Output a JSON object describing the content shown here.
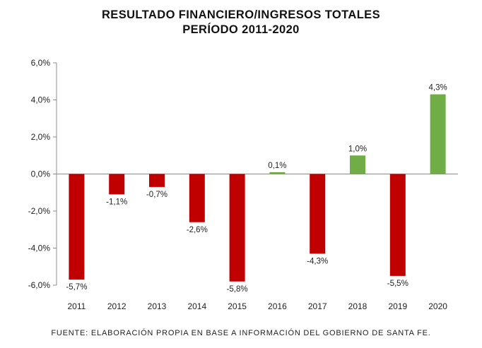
{
  "title_line1": "RESULTADO FINANCIERO/INGRESOS TOTALES",
  "title_line2": "PERÍODO 2011-2020",
  "source": "FUENTE: ELABORACIÓN PROPIA EN BASE A INFORMACIÓN DEL GOBIERNO DE SANTA FE.",
  "colors": {
    "negative": "#c00000",
    "positive": "#70ad47"
  },
  "chart_data": {
    "type": "bar",
    "categories": [
      "2011",
      "2012",
      "2013",
      "2014",
      "2015",
      "2016",
      "2017",
      "2018",
      "2019",
      "2020"
    ],
    "values": [
      -5.7,
      -1.1,
      -0.7,
      -2.6,
      -5.8,
      0.1,
      -4.3,
      1.0,
      -5.5,
      4.3
    ],
    "data_labels": [
      "-5,7%",
      "-1,1%",
      "-0,7%",
      "-2,6%",
      "-5,8%",
      "0,1%",
      "-4,3%",
      "1,0%",
      "-5,5%",
      "4,3%"
    ],
    "ylim": [
      -6,
      6
    ],
    "yticks": [
      6,
      4,
      2,
      0,
      -2,
      -4,
      -6
    ],
    "ytick_labels": [
      "6,0%",
      "4,0%",
      "2,0%",
      "0,0%",
      "-2,0%",
      "-4,0%",
      "-6,0%"
    ],
    "grid": false,
    "legend": "none",
    "title": "RESULTADO FINANCIERO/INGRESOS TOTALES",
    "subtitle": "PERÍODO 2011-2020",
    "xlabel": "",
    "ylabel": ""
  }
}
